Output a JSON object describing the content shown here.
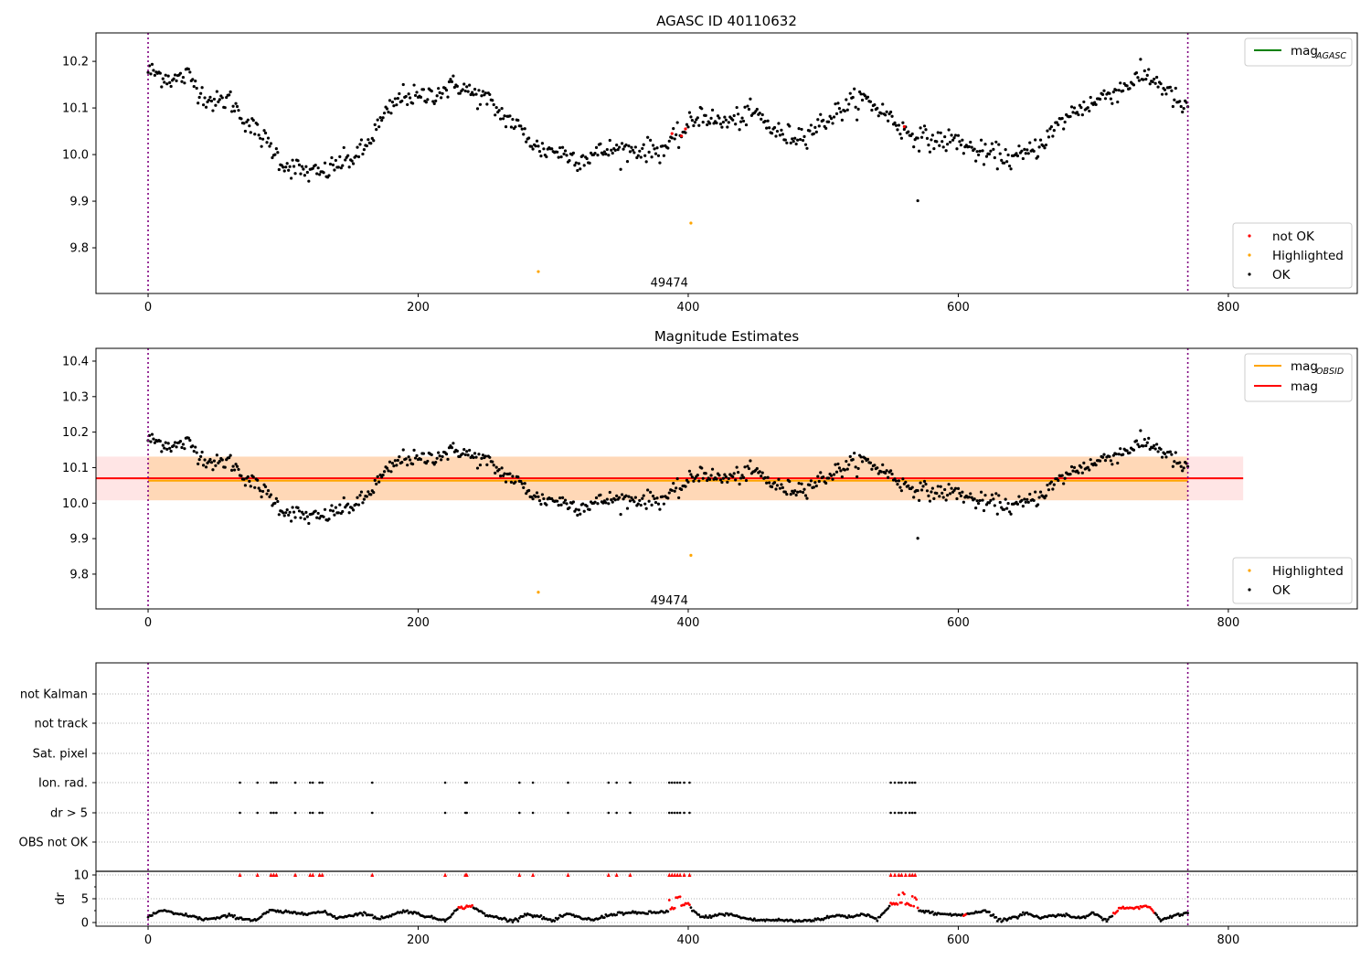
{
  "chart_data": [
    {
      "type": "scatter",
      "title": "AGASC ID 40110632",
      "xlim": [
        -38.6,
        895.5
      ],
      "ylim": [
        9.702,
        10.261
      ],
      "xticks": [
        0,
        200,
        400,
        600,
        800
      ],
      "yticks": [
        9.8,
        9.9,
        10.0,
        10.1,
        10.2
      ],
      "vlines": [
        0,
        770
      ],
      "annotation": {
        "text": "49474",
        "x": 386,
        "y": 9.725
      },
      "legend_lines": [
        {
          "label": "mag",
          "sub": "AGASC",
          "color": "#008000"
        }
      ],
      "legend_points": [
        {
          "label": "not OK",
          "color": "#ff0000"
        },
        {
          "label": "Highlighted",
          "color": "#ffa500"
        },
        {
          "label": "OK",
          "color": "#000000"
        }
      ]
    },
    {
      "type": "scatter",
      "title": "Magnitude Estimates",
      "xlim": [
        -38.6,
        895.5
      ],
      "ylim": [
        9.702,
        10.436
      ],
      "xticks": [
        0,
        200,
        400,
        600,
        800
      ],
      "yticks": [
        9.8,
        9.9,
        10.0,
        10.1,
        10.2,
        10.3,
        10.4
      ],
      "vlines": [
        0,
        770
      ],
      "annotation": {
        "text": "49474",
        "x": 386,
        "y": 9.725
      },
      "mag": 10.07,
      "mag_band": [
        10.008,
        10.131
      ],
      "mag_range": [
        -38.6,
        811
      ],
      "mag_obsid": 10.067,
      "mag_obsid_band": [
        10.008,
        10.131
      ],
      "mag_obsid_range": [
        0,
        770
      ],
      "legend_lines": [
        {
          "label": "mag",
          "sub": "OBSID",
          "color": "#ffa500"
        },
        {
          "label": "mag",
          "sub": "",
          "color": "#ff0000"
        }
      ],
      "legend_points": [
        {
          "label": "Highlighted",
          "color": "#ffa500"
        },
        {
          "label": "OK",
          "color": "#000000"
        }
      ]
    },
    {
      "type": "scatter",
      "title": "",
      "categories": [
        "not Kalman",
        "not track",
        "Sat. pixel",
        "Ion. rad.",
        "dr > 5",
        "OBS not OK"
      ],
      "flag_x": {
        "Ion. rad.": [
          68,
          81,
          91,
          93,
          95,
          109,
          120,
          122,
          127,
          129,
          166,
          220,
          235,
          236,
          275,
          285,
          311,
          341,
          347,
          357,
          386,
          388,
          390,
          392,
          394,
          397,
          401,
          550,
          553,
          556,
          558,
          561,
          564,
          566,
          568
        ],
        "dr > 5": [
          68,
          81,
          91,
          93,
          95,
          109,
          120,
          122,
          127,
          129,
          166,
          220,
          235,
          236,
          275,
          285,
          311,
          341,
          347,
          357,
          386,
          388,
          390,
          392,
          394,
          397,
          401,
          550,
          553,
          556,
          558,
          561,
          564,
          566,
          568
        ]
      },
      "dr_ylabel": "dr",
      "dr_yticks": [
        0,
        5,
        10
      ],
      "dr_ylim": [
        -1,
        10.5
      ],
      "dr_knots_step": 10,
      "dr_knots": [
        1.2,
        2.6,
        1.8,
        1.5,
        0.7,
        0.8,
        1.5,
        0.8,
        0.5,
        2.5,
        2.2,
        2.0,
        2.0,
        2.2,
        1.0,
        1.5,
        2.0,
        0.8,
        1.5,
        2.5,
        1.8,
        1.0,
        0.5,
        3.0,
        3.5,
        1.5,
        1.0,
        0.3,
        1.8,
        1.2,
        0.3,
        1.8,
        1.0,
        0.5,
        1.5,
        2.0,
        2.0,
        2.0,
        2.2,
        2.5,
        3.5,
        1.0,
        1.5,
        1.8,
        1.0,
        0.5,
        0.5,
        0.5,
        0.3,
        0.5,
        0.8,
        1.5,
        1.2,
        1.8,
        0.8,
        3.5,
        3.5,
        2.5,
        2.0,
        1.8,
        1.5,
        2.0,
        2.5,
        0.5,
        1.0,
        2.0,
        1.0,
        1.5,
        1.5,
        1.0,
        2.0,
        0.5,
        3.0,
        3.0,
        3.5,
        0.5,
        1.5,
        2.0
      ],
      "dr_red_ranges": [
        [
          230,
          240
        ],
        [
          386,
          401
        ],
        [
          550,
          570
        ],
        [
          604,
          606
        ],
        [
          715,
          745
        ]
      ]
    }
  ],
  "lightcurve": {
    "n": 771,
    "knots_step": 10,
    "knots": [
      10.18,
      10.17,
      10.16,
      10.17,
      10.13,
      10.11,
      10.12,
      10.08,
      10.05,
      10.02,
      9.98,
      9.97,
      9.96,
      9.96,
      9.98,
      9.99,
      10.01,
      10.06,
      10.1,
      10.13,
      10.12,
      10.13,
      10.14,
      10.15,
      10.13,
      10.12,
      10.09,
      10.07,
      10.04,
      10.01,
      10.01,
      10.0,
      9.99,
      10.0,
      10.01,
      10.01,
      10.01,
      10.01,
      10.01,
      10.03,
      10.06,
      10.09,
      10.07,
      10.07,
      10.08,
      10.09,
      10.06,
      10.04,
      10.04,
      10.05,
      10.07,
      10.09,
      10.11,
      10.12,
      10.1,
      10.08,
      10.05,
      10.04,
      10.03,
      10.03,
      10.03,
      10.01,
      10.0,
      10.0,
      9.99,
      10.0,
      10.02,
      10.05,
      10.08,
      10.1,
      10.11,
      10.13,
      10.14,
      10.16,
      10.17,
      10.15,
      10.12,
      10.09
    ],
    "scatter_sigma": 0.015,
    "highlighted": [
      [
        289,
        9.749
      ],
      [
        402,
        9.853
      ]
    ],
    "not_ok": [
      [
        388,
        10.045
      ],
      [
        395,
        10.04
      ],
      [
        398,
        10.055
      ],
      [
        560,
        10.06
      ]
    ],
    "ok_outliers": [
      [
        570,
        9.901
      ]
    ]
  }
}
